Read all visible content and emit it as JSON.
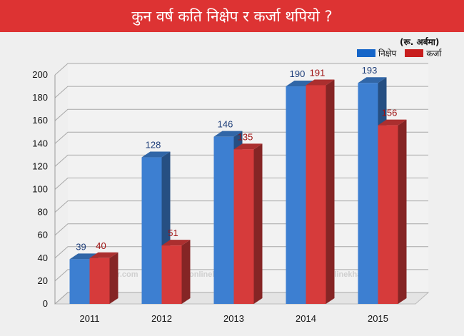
{
  "header": {
    "title": "कुन वर्ष कति निक्षेप र कर्जा थपियो ?",
    "unit": "(रू. अर्बमा)"
  },
  "legend": [
    {
      "label": "निक्षेप",
      "color": "#1565c8"
    },
    {
      "label": "कर्जा",
      "color": "#c81e1e"
    }
  ],
  "watermark": "onlinekhabar.com",
  "chart_data": {
    "type": "bar",
    "title": "कुन वर्ष कति निक्षेप र कर्जा थपियो ?",
    "categories": [
      "2011",
      "2012",
      "2013",
      "2014",
      "2015"
    ],
    "series": [
      {
        "name": "निक्षेप",
        "values": [
          39,
          128,
          146,
          190,
          193
        ],
        "color": "#3d7fd1",
        "label_color": "#1f3f7a"
      },
      {
        "name": "कर्जा",
        "values": [
          40,
          51,
          135,
          191,
          156
        ],
        "color": "#d63b3b",
        "label_color": "#9e1010"
      }
    ],
    "ylim": [
      0,
      200
    ],
    "yticks": [
      0,
      20,
      40,
      60,
      80,
      100,
      120,
      140,
      160,
      180,
      200
    ],
    "grid": true,
    "legend_position": "top-right"
  }
}
